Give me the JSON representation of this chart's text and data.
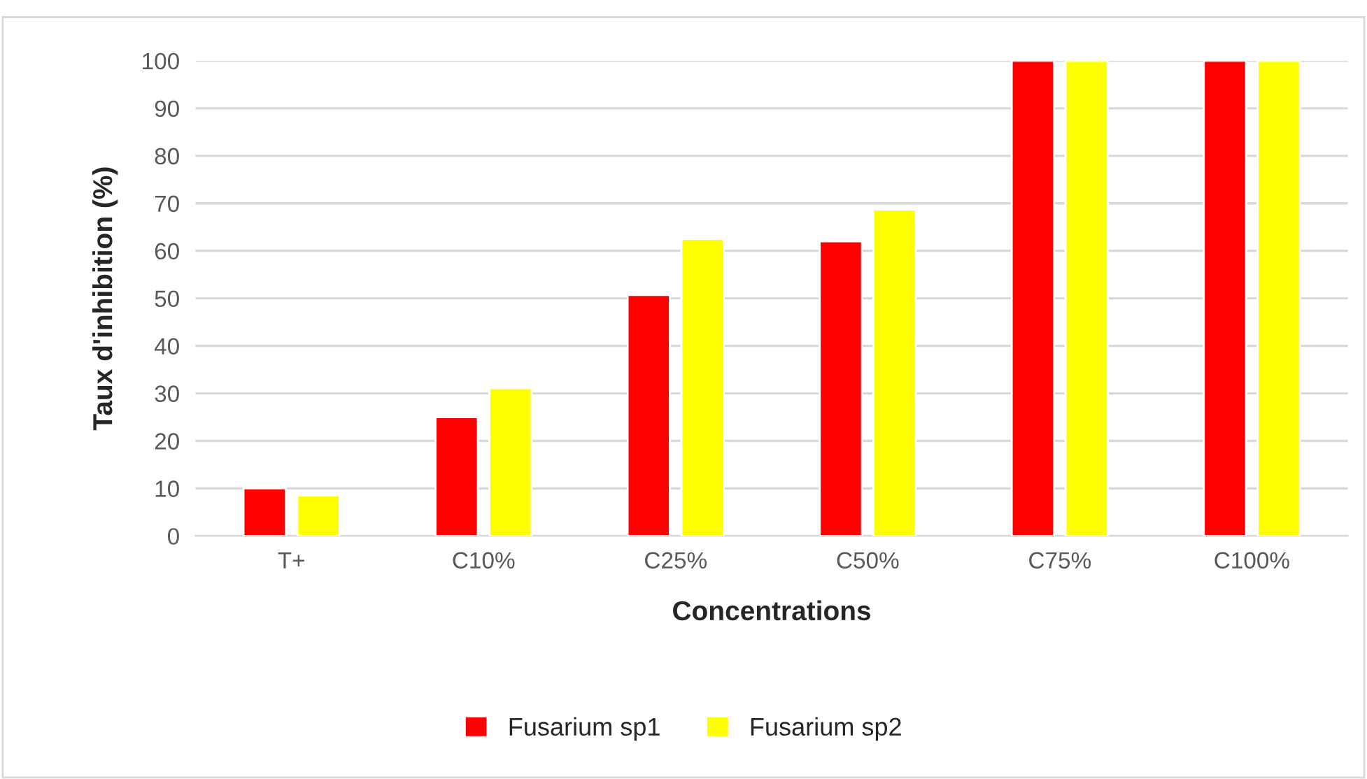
{
  "chart_data": {
    "type": "bar",
    "xlabel": "Concentrations",
    "ylabel": "Taux d'inhibition (%)",
    "categories": [
      "T+",
      "C10%",
      "C25%",
      "C50%",
      "C75%",
      "C100%"
    ],
    "series": [
      {
        "name": "Fusarium sp1",
        "color": "#ff0000",
        "values": [
          10,
          25,
          50.7,
          62,
          100,
          100
        ]
      },
      {
        "name": "Fusarium sp2",
        "color": "#ffff00",
        "values": [
          8.5,
          31.1,
          62.5,
          68.7,
          100,
          100
        ]
      }
    ],
    "ylim": [
      0,
      100
    ],
    "yticks": [
      0,
      10,
      20,
      30,
      40,
      50,
      60,
      70,
      80,
      90,
      100
    ],
    "grid": "y",
    "legend": "bottom"
  }
}
